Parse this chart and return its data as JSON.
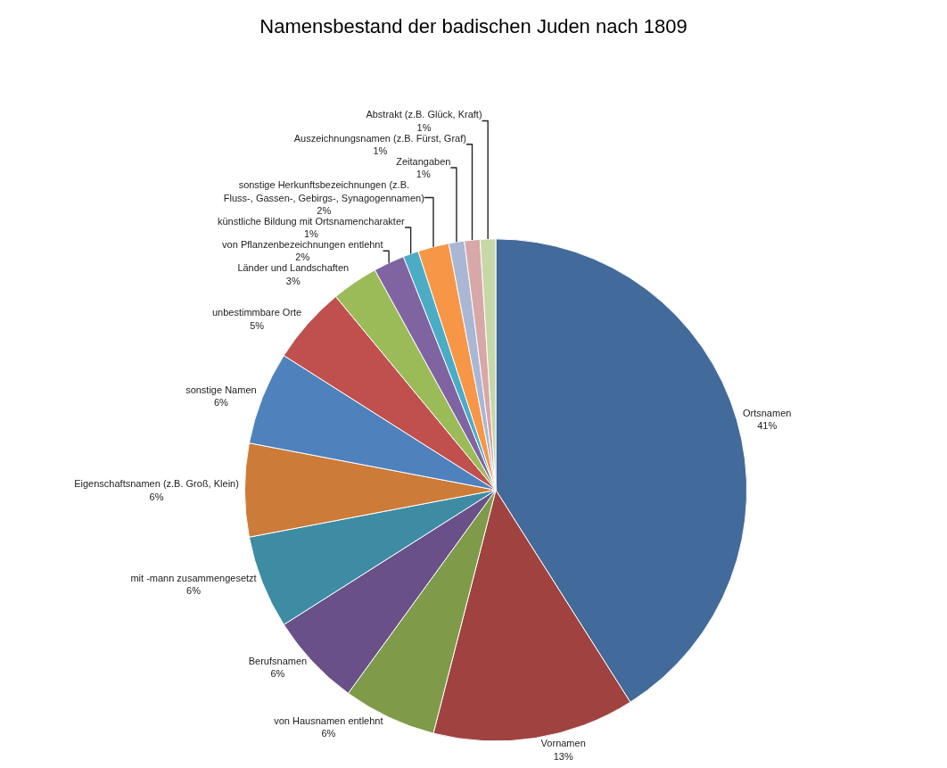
{
  "chart_data": {
    "type": "pie",
    "title": "Namensbestand der badischen Juden nach 1809",
    "categories": [
      "Ortsnamen",
      "Vornamen",
      "von Hausnamen entlehnt",
      "Berufsnamen",
      "mit -mann zusammengesetzt",
      "Eigenschaftsnamen (z.B. Groß, Klein)",
      "sonstige Namen",
      "unbestimmbare Orte",
      "Länder und Landschaften",
      "von Pflanzenbezeichnungen entlehnt",
      "künstliche Bildung mit Ortsnamencharakter",
      "sonstige Herkunftsbezeichnungen (z.B. Fluss-, Gassen-, Gebirgs-, Synagogennamen)",
      "Zeitangaben",
      "Auszeichnungsnamen (z.B. Fürst, Graf)",
      "Abstrakt (z.B. Glück, Kraft)"
    ],
    "values": [
      41,
      13,
      6,
      6,
      6,
      6,
      6,
      5,
      3,
      2,
      1,
      2,
      1,
      1,
      1
    ],
    "value_labels": [
      "41%",
      "13%",
      "6%",
      "6%",
      "6%",
      "6%",
      "6%",
      "5%",
      "3%",
      "2%",
      "1%",
      "2%",
      "1%",
      "1%",
      "1%"
    ],
    "colors": [
      "#426a9a",
      "#a04240",
      "#7f9a48",
      "#6a5088",
      "#3d8ca4",
      "#cc7b38",
      "#4f81bd",
      "#c0504d",
      "#9bbb59",
      "#8064a2",
      "#4bacc6",
      "#f79646",
      "#a9b7d4",
      "#d7a8a7",
      "#c6d7a8"
    ],
    "legend": false
  }
}
